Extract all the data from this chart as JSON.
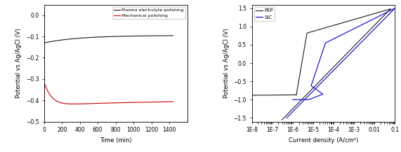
{
  "left": {
    "xlabel": "Time (min)",
    "ylabel": "Potential vs Ag/AgCl (V)",
    "xlim": [
      0,
      1600
    ],
    "ylim": [
      -0.5,
      0.05
    ],
    "yticks": [
      0.0,
      -0.1,
      -0.2,
      -0.3,
      -0.4,
      -0.5
    ],
    "xticks": [
      0,
      200,
      400,
      600,
      800,
      1000,
      1200,
      1400
    ],
    "legend": [
      "Plasma electrolyte polishing",
      "Mechanical polishing"
    ],
    "line_colors": [
      "#1a1a1a",
      "#cc0000"
    ]
  },
  "right": {
    "xlabel": "Current density (A/cm²)",
    "ylabel": "Potential vs Ag/AgCl (V)",
    "ylim": [
      -1.6,
      1.6
    ],
    "yticks": [
      -1.5,
      -1.0,
      -0.5,
      0.0,
      0.5,
      1.0,
      1.5
    ],
    "xtick_labels": [
      "1E-8",
      "1E-7",
      "1E-6",
      "1E-5",
      "1E-4",
      "1E-3",
      "0.01",
      "0.1"
    ],
    "xtick_vals": [
      1e-08,
      1e-07,
      1e-06,
      1e-05,
      0.0001,
      0.001,
      0.01,
      0.1
    ],
    "legend": [
      "PEP",
      "SiC"
    ],
    "line_colors": [
      "#1a1a1a",
      "#0000cc"
    ]
  }
}
